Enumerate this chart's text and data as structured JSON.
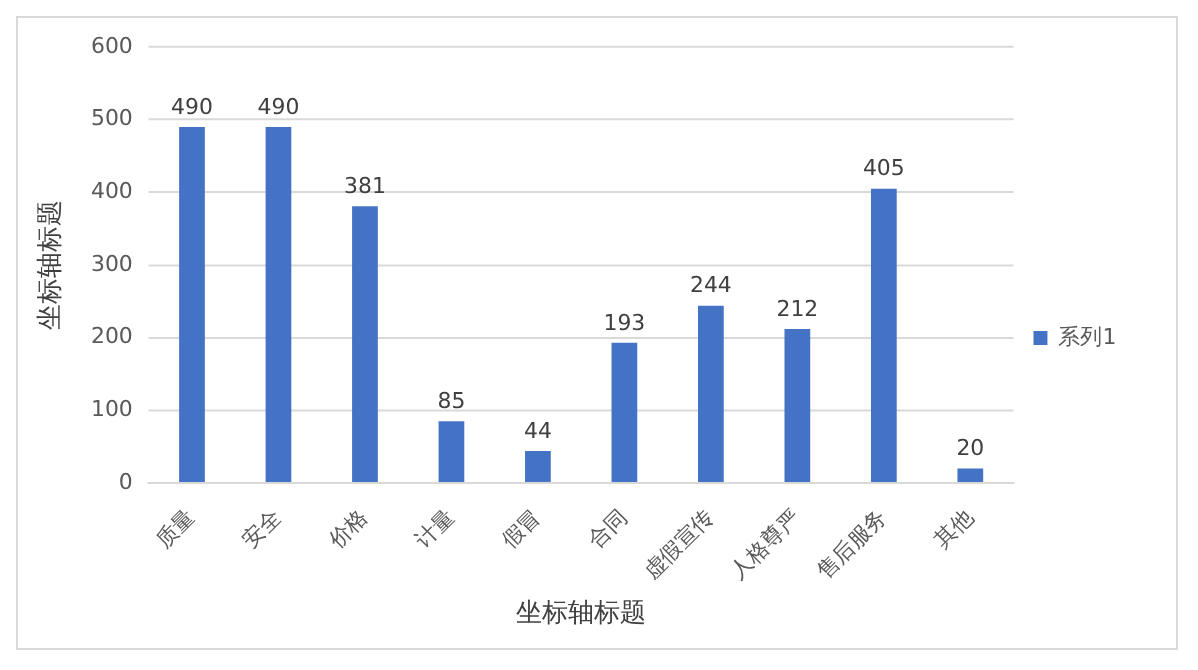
{
  "chart_data": {
    "type": "bar",
    "xlabel": "坐标轴标题",
    "ylabel": "坐标轴标题",
    "categories": [
      "质量",
      "安全",
      "价格",
      "计量",
      "假冒",
      "合同",
      "虚假宣传",
      "人格尊严",
      "售后服务",
      "其他"
    ],
    "series": [
      {
        "name": "系列1",
        "color": "#4472c4",
        "values": [
          490,
          490,
          381,
          85,
          44,
          193,
          244,
          212,
          405,
          20
        ]
      }
    ],
    "ylim": [
      0,
      600
    ],
    "yticks": [
      0,
      100,
      200,
      300,
      400,
      500,
      600
    ],
    "grid": "y",
    "legend": "right",
    "data_labels": true
  }
}
